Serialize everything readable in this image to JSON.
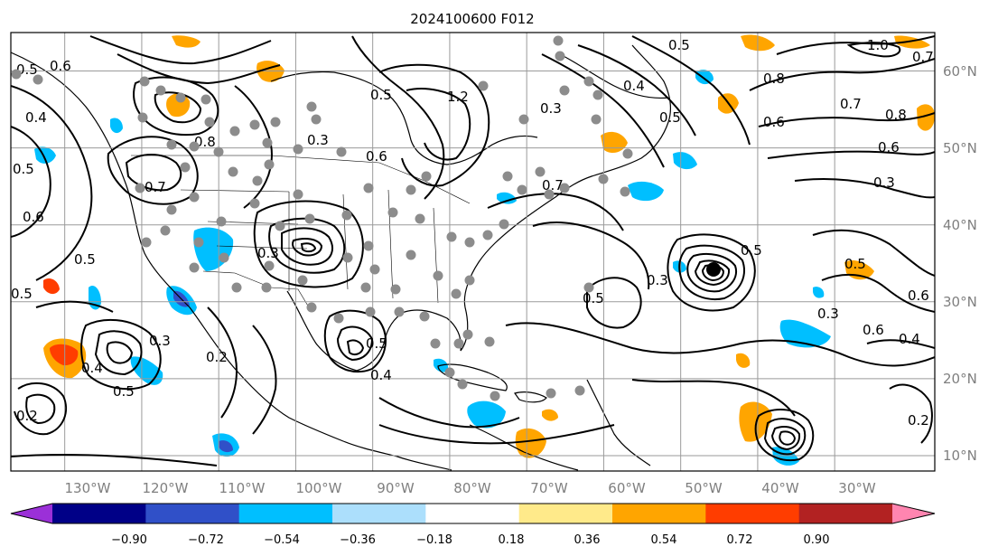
{
  "title": "2024100600 F012",
  "map": {
    "projection": "plate-carree",
    "lon_range": [
      -137,
      -17
    ],
    "lat_range": [
      8,
      65
    ],
    "lat_gridlines": [
      10,
      20,
      30,
      40,
      50,
      60
    ],
    "lon_gridlines": [
      -130,
      -120,
      -110,
      -100,
      -90,
      -80,
      -70,
      -60,
      -50,
      -40,
      -30
    ],
    "lat_labels": [
      "10°N",
      "20°N",
      "30°N",
      "40°N",
      "50°N",
      "60°N"
    ],
    "lon_labels": [
      "130°W",
      "120°W",
      "110°W",
      "100°W",
      "90°W",
      "80°W",
      "70°W",
      "60°W",
      "50°W",
      "40°W",
      "30°W"
    ],
    "gridline_color": "#9a9a9a",
    "label_color": "#7f7f7f"
  },
  "contour_labels": [
    "0.6",
    "0.5",
    "0.4",
    "0.5",
    "0.7",
    "0.8",
    "0.6",
    "1.2",
    "0.5",
    "0.3",
    "0.4",
    "0.5",
    "0.6",
    "0.7",
    "0.8",
    "1.0",
    "0.5",
    "0.8",
    "0.7",
    "0.6",
    "0.3",
    "0.5",
    "0.3",
    "0.6",
    "0.4",
    "0.6",
    "0.7",
    "0.5",
    "0.3",
    "0.2",
    "0.6",
    "0.5",
    "0.3",
    "0.5",
    "0.2",
    "0.4",
    "0.3",
    "0.5",
    "0.4",
    "0.5",
    "0.2",
    "0.5",
    "0.3"
  ],
  "colorbar": {
    "ticks": [
      "−0.90",
      "−0.72",
      "−0.54",
      "−0.36",
      "−0.18",
      "0.18",
      "0.36",
      "0.54",
      "0.72",
      "0.90"
    ],
    "colors": [
      "#9b30d8",
      "#000087",
      "#3050c8",
      "#00bfff",
      "#acdffc",
      "#ffffff",
      "#ffea8a",
      "#ffa500",
      "#ff3d00",
      "#b22222",
      "#ff85b0"
    ],
    "extend": "both"
  },
  "shading": {
    "positive_color": "#ffa500",
    "strong_positive_color": "#ff3d00",
    "negative_color": "#00bfff",
    "strong_negative_color": "#3050c8"
  },
  "observations_color": "#8c8c8c"
}
